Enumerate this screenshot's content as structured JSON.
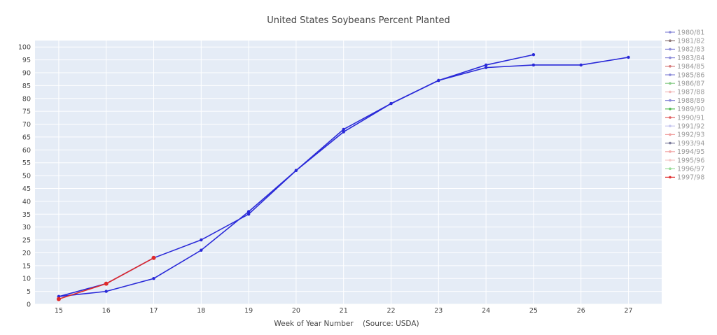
{
  "chart_data": {
    "type": "line",
    "title": "United States Soybeans Percent Planted",
    "xlabel": "Week of Year Number    (Source: USDA)",
    "ylabel": "",
    "xlim": [
      14.5,
      27.7
    ],
    "ylim": [
      0,
      102.5
    ],
    "x_ticks": [
      15,
      16,
      17,
      18,
      19,
      20,
      21,
      22,
      23,
      24,
      25,
      26,
      27
    ],
    "y_ticks": [
      0,
      5,
      10,
      15,
      20,
      25,
      30,
      35,
      40,
      45,
      50,
      55,
      60,
      65,
      70,
      75,
      80,
      85,
      90,
      95,
      100
    ],
    "grid": true,
    "legend_position": "right",
    "series": [
      {
        "name": "1980/81",
        "color": "#8a8ad8",
        "x": [
          15,
          16,
          17,
          18,
          19,
          20,
          21,
          22,
          23,
          24,
          25
        ],
        "y": [
          3,
          8,
          18,
          25,
          35,
          52,
          68,
          78,
          87,
          93,
          97
        ]
      },
      {
        "name": "1981/82",
        "color": "#8c7676",
        "x": [],
        "y": []
      },
      {
        "name": "1982/83",
        "color": "#8a8ad8",
        "x": [],
        "y": []
      },
      {
        "name": "1983/84",
        "color": "#8a8ad8",
        "x": [],
        "y": []
      },
      {
        "name": "1984/85",
        "color": "#d67a7a",
        "x": [],
        "y": []
      },
      {
        "name": "1985/86",
        "color": "#8a8ad8",
        "x": [],
        "y": []
      },
      {
        "name": "1986/87",
        "color": "#88cc88",
        "x": [],
        "y": []
      },
      {
        "name": "1987/88",
        "color": "#f2b8b8",
        "x": [],
        "y": []
      },
      {
        "name": "1988/89",
        "color": "#8a8ad8",
        "x": [],
        "y": []
      },
      {
        "name": "1989/90",
        "color": "#55bb55",
        "x": [],
        "y": []
      },
      {
        "name": "1990/91",
        "color": "#e06060",
        "x": [],
        "y": []
      },
      {
        "name": "1991/92",
        "color": "#c8c8f0",
        "x": [],
        "y": []
      },
      {
        "name": "1992/93",
        "color": "#f0a0a0",
        "x": [],
        "y": []
      },
      {
        "name": "1993/94",
        "color": "#7a7a9a",
        "x": [
          15,
          16,
          17,
          18,
          19,
          20,
          21,
          22,
          23,
          24,
          25,
          26,
          27
        ],
        "y": [
          3,
          5,
          10,
          21,
          36,
          52,
          67,
          78,
          87,
          92,
          93,
          93,
          96
        ]
      },
      {
        "name": "1994/95",
        "color": "#f2a8a8",
        "x": [],
        "y": []
      },
      {
        "name": "1995/96",
        "color": "#f5c8c8",
        "x": [],
        "y": []
      },
      {
        "name": "1996/97",
        "color": "#99dd99",
        "x": [],
        "y": []
      },
      {
        "name": "1997/98",
        "color": "#e03030",
        "x": [
          15,
          16,
          17
        ],
        "y": [
          2,
          8,
          18
        ]
      }
    ]
  },
  "draw_colors": {
    "plot_bg": "#e5ecf6",
    "grid": "#ffffff",
    "line_blue": "#2a2ad8",
    "line_red": "#e02a2a"
  }
}
